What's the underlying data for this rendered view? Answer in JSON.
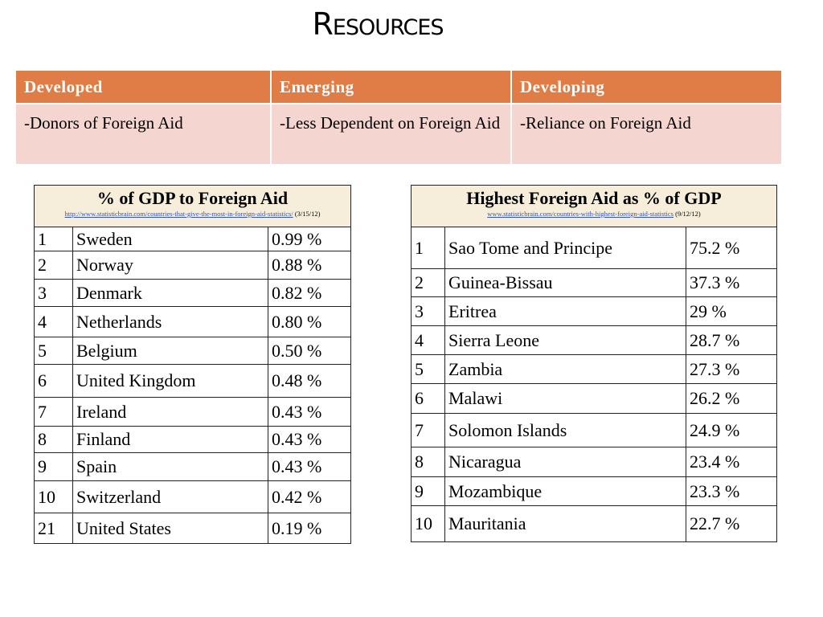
{
  "title": "Resources",
  "categories_table": {
    "headers": [
      "Developed",
      "Emerging",
      "Developing"
    ],
    "cells": [
      "-Donors of Foreign Aid",
      "-Less Dependent on Foreign Aid",
      "-Reliance on Foreign Aid"
    ]
  },
  "left_table": {
    "title": "% of GDP to Foreign Aid",
    "source": "http://www.statisticbrain.com/countries-that-give-the-most-in-foreign-aid-statistics/",
    "date": "(3/15/12)",
    "rows": [
      [
        "1",
        "Sweden",
        "0.99 %"
      ],
      [
        "2",
        "Norway",
        "0.88 %"
      ],
      [
        "3",
        "Denmark",
        "0.82 %"
      ],
      [
        "4",
        "Netherlands",
        "0.80 %"
      ],
      [
        "5",
        "Belgium",
        "0.50 %"
      ],
      [
        "6",
        "United Kingdom",
        "0.48 %"
      ],
      [
        "7",
        "Ireland",
        "0.43 %"
      ],
      [
        "8",
        "Finland",
        "0.43 %"
      ],
      [
        "9",
        "Spain",
        "0.43 %"
      ],
      [
        "10",
        "Switzerland",
        "0.42 %"
      ],
      [
        "21",
        "United States",
        "0.19 %"
      ]
    ]
  },
  "right_table": {
    "title": "Highest Foreign Aid as % of GDP",
    "source": "www.statisticbrain.com/countries-with-highest-foreign-aid-statistics",
    "date": "(9/12/12)",
    "rows": [
      [
        "1",
        "Sao Tome and Principe",
        "75.2 %"
      ],
      [
        "2",
        "Guinea-Bissau",
        "37.3 %"
      ],
      [
        "3",
        "Eritrea",
        "29 %"
      ],
      [
        "4",
        "Sierra Leone",
        "28.7 %"
      ],
      [
        "5",
        "Zambia",
        "27.3 %"
      ],
      [
        "6",
        "Malawi",
        "26.2 %"
      ],
      [
        "7",
        "Solomon Islands",
        "24.9 %"
      ],
      [
        "8",
        "Nicaragua",
        "23.4 %"
      ],
      [
        "9",
        "Mozambique",
        "23.3 %"
      ],
      [
        "10",
        "Mauritania",
        "22.7 %"
      ]
    ]
  }
}
